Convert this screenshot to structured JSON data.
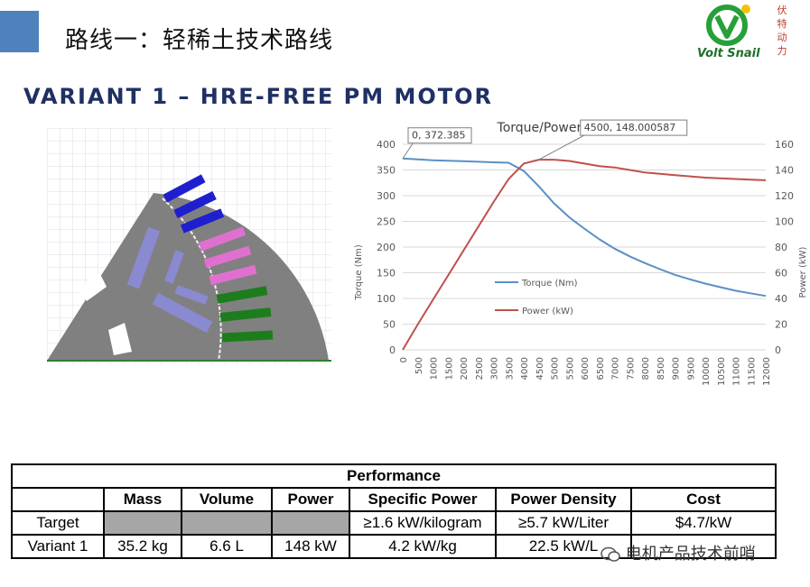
{
  "slide": {
    "title": "路线一：轻稀土技术路线",
    "heading": "VARIANT 1 – HRE-FREE PM MOTOR"
  },
  "logo": {
    "brand": "Volt Snail",
    "chars": [
      "伏",
      "特",
      "动",
      "力"
    ],
    "color": "#1f6f2a"
  },
  "chart_data": {
    "type": "line",
    "title": "Torque/Power curves - 350V",
    "xlabel": "",
    "ylabel_left": "Torque (Nm)",
    "ylabel_right": "Power (kW)",
    "x_ticks": [
      0,
      500,
      1000,
      1500,
      2000,
      2500,
      3000,
      3500,
      4000,
      4500,
      5000,
      5500,
      6000,
      6500,
      7000,
      7500,
      8000,
      8500,
      9000,
      9500,
      10000,
      10500,
      11000,
      11500,
      12000
    ],
    "y_left_ticks": [
      0,
      50,
      100,
      150,
      200,
      250,
      300,
      350,
      400
    ],
    "y_right_ticks": [
      0,
      20,
      40,
      60,
      80,
      100,
      120,
      140,
      160
    ],
    "y_left_lim": [
      0,
      400
    ],
    "y_right_lim": [
      0,
      160
    ],
    "xlim": [
      0,
      12000
    ],
    "grid": true,
    "legend_placement": "center",
    "series": [
      {
        "name": "Torque (Nm)",
        "axis": "left",
        "color": "#5b8fc7",
        "x": [
          0,
          1000,
          2000,
          3000,
          3500,
          4000,
          4500,
          5000,
          5500,
          6000,
          6500,
          7000,
          7500,
          8000,
          8500,
          9000,
          9500,
          10000,
          10500,
          11000,
          11500,
          12000
        ],
        "y": [
          372.385,
          369,
          367,
          365,
          364,
          348,
          318,
          285,
          258,
          236,
          215,
          197,
          182,
          169,
          157,
          146,
          137,
          129,
          122,
          115,
          110,
          105
        ]
      },
      {
        "name": "Power (kW)",
        "axis": "right",
        "color": "#c0504d",
        "x": [
          0,
          500,
          1000,
          1500,
          2000,
          2500,
          3000,
          3500,
          4000,
          4500,
          5000,
          5500,
          6000,
          6500,
          7000,
          7500,
          8000,
          8500,
          9000,
          9500,
          10000,
          10500,
          11000,
          11500,
          12000
        ],
        "y": [
          0,
          20,
          39,
          58,
          77,
          96,
          115,
          133,
          145,
          148.000587,
          148,
          147,
          145,
          143,
          142,
          140,
          138,
          137,
          136,
          135,
          134,
          133.5,
          133,
          132.5,
          132
        ]
      }
    ],
    "annotations": [
      {
        "text": "0, 372.385",
        "x": 0,
        "y": 372.385,
        "axis": "left"
      },
      {
        "text": "4500, 148.000587",
        "x": 4500,
        "y": 148.000587,
        "axis": "right"
      }
    ]
  },
  "table": {
    "header": "Performance",
    "columns": [
      "",
      "Mass",
      "Volume",
      "Power",
      "Specific Power",
      "Power Density",
      "Cost"
    ],
    "rows": [
      [
        "Target",
        "",
        "",
        "",
        "≥1.6 kW/kilogram",
        "≥5.7 kW/Liter",
        "$4.7/kW"
      ],
      [
        "Variant 1",
        "35.2 kg",
        "6.6 L",
        "148 kW",
        "4.2 kW/kg",
        "22.5 kW/L",
        ""
      ]
    ]
  },
  "watermark": "电机产品技术前哨"
}
